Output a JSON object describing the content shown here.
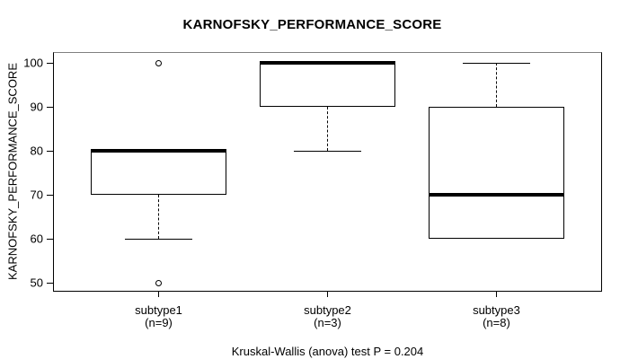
{
  "title": "KARNOFSKY_PERFORMANCE_SCORE",
  "caption": "Kruskal-Wallis (anova) test P = 0.204",
  "chart_data": {
    "type": "boxplot",
    "title": "KARNOFSKY_PERFORMANCE_SCORE",
    "xlabel": "",
    "ylabel": "KARNOFSKY_PERFORMANCE_SCORE",
    "ylim": [
      48.2,
      102.3
    ],
    "yticks": [
      50,
      60,
      70,
      80,
      90,
      100
    ],
    "grid": false,
    "legend": "none",
    "annotation": "Kruskal-Wallis (anova) test P = 0.204",
    "colors": {
      "line": "#000000",
      "box_fill": "#ffffff",
      "background": "#ffffff",
      "border_top": "#808080"
    },
    "groups": [
      {
        "label": "subtype1",
        "sublabel": "(n=9)",
        "n": 9,
        "q1": 70,
        "median": 80,
        "q3": 80,
        "whisker_low": 60,
        "whisker_high": 80,
        "outliers": [
          100,
          50
        ]
      },
      {
        "label": "subtype2",
        "sublabel": "(n=3)",
        "n": 3,
        "q1": 90,
        "median": 100,
        "q3": 100,
        "whisker_low": 80,
        "whisker_high": 100,
        "outliers": []
      },
      {
        "label": "subtype3",
        "sublabel": "(n=8)",
        "n": 8,
        "q1": 60,
        "median": 70,
        "q3": 90,
        "whisker_low": 60,
        "whisker_high": 100,
        "outliers": []
      }
    ]
  }
}
